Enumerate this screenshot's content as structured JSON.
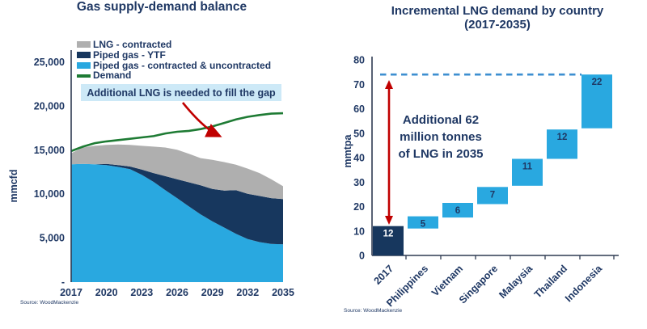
{
  "page": {
    "background": "#FFFFFF",
    "text_color": "#1F3864"
  },
  "left_chart": {
    "title": "Gas supply-demand balance",
    "y_axis_title": "mmcfd",
    "source": "Source: WoodMackenzie",
    "callout": "Additional LNG is needed to fill the gap",
    "legend": [
      {
        "label": "LNG - contracted",
        "swatch": "area",
        "color": "#AFAFAF"
      },
      {
        "label": "Piped gas - YTF",
        "swatch": "area",
        "color": "#17375E"
      },
      {
        "label": "Piped gas - contracted & uncontracted",
        "swatch": "area",
        "color": "#29A8E0"
      },
      {
        "label": "Demand",
        "swatch": "line",
        "color": "#1E7B34"
      }
    ],
    "chart_data": {
      "type": "area",
      "stacked": true,
      "x": [
        2017,
        2018,
        2019,
        2020,
        2021,
        2022,
        2023,
        2024,
        2025,
        2026,
        2027,
        2028,
        2029,
        2030,
        2031,
        2032,
        2033,
        2034,
        2035
      ],
      "x_tick_labels": [
        "2017",
        "2020",
        "2023",
        "2026",
        "2029",
        "2032",
        "2035"
      ],
      "y_tick_values": [
        25000,
        20000,
        15000,
        10000,
        5000,
        0
      ],
      "y_tick_labels": [
        "25,000",
        "20,000",
        "15,000",
        "10,000",
        "5,000",
        "-"
      ],
      "ylim": [
        0,
        26500
      ],
      "series": [
        {
          "name": "Piped gas - contracted & uncontracted",
          "color": "#29A8E0",
          "values": [
            13400,
            13450,
            13400,
            13300,
            13100,
            12850,
            12200,
            11400,
            10450,
            9550,
            8600,
            7700,
            6900,
            6200,
            5500,
            4900,
            4550,
            4350,
            4300
          ]
        },
        {
          "name": "Piped gas - YTF",
          "color": "#17375E",
          "values": [
            0,
            0,
            0,
            150,
            200,
            290,
            600,
            1000,
            1600,
            2150,
            2750,
            3300,
            3700,
            4200,
            4950,
            5150,
            5250,
            5200,
            5150
          ]
        },
        {
          "name": "LNG - contracted",
          "color": "#AFAFAF",
          "values": [
            1250,
            1850,
            2100,
            2150,
            2350,
            2460,
            2700,
            3000,
            3250,
            3350,
            3250,
            3100,
            3300,
            3250,
            2900,
            2850,
            2600,
            2150,
            1450
          ]
        }
      ],
      "line_series": {
        "name": "Demand",
        "color": "#1E7B34",
        "values": [
          14900,
          15400,
          15800,
          16000,
          16150,
          16300,
          16450,
          16600,
          16900,
          17100,
          17200,
          17400,
          17700,
          18100,
          18500,
          18800,
          19000,
          19150,
          19200
        ]
      },
      "annotation_arrow_color": "#C00000"
    }
  },
  "right_chart": {
    "title": "Incremental LNG demand by country\n(2017-2035)",
    "y_axis_title": "mmtpa",
    "source": "Source: WoodMackenzie",
    "annotation": "Additional 62\nmillion tonnes\nof LNG in 2035",
    "chart_data": {
      "type": "bar",
      "subtype": "waterfall",
      "categories": [
        "2017",
        "Philippines",
        "Vietnam",
        "Singapore",
        "Malaysia",
        "Thailand",
        "Indonesia"
      ],
      "values": [
        12,
        5,
        6,
        7,
        11,
        12,
        22
      ],
      "starts": [
        0,
        11,
        15.5,
        21,
        28.5,
        39.5,
        52
      ],
      "bar_labels": [
        "12",
        "5",
        "6",
        "7",
        "11",
        "12",
        "22"
      ],
      "first_bar_color": "#17375E",
      "bar_color": "#29A8E0",
      "first_label_color": "#FFFFFF",
      "label_color": "#1F3864",
      "dashed_line_value": 74,
      "dashed_line_color": "#3D8FD0",
      "arrow_color": "#C00000",
      "y_ticks": [
        0,
        10,
        20,
        30,
        40,
        50,
        60,
        70,
        80
      ],
      "ylim": [
        0,
        80
      ]
    }
  }
}
